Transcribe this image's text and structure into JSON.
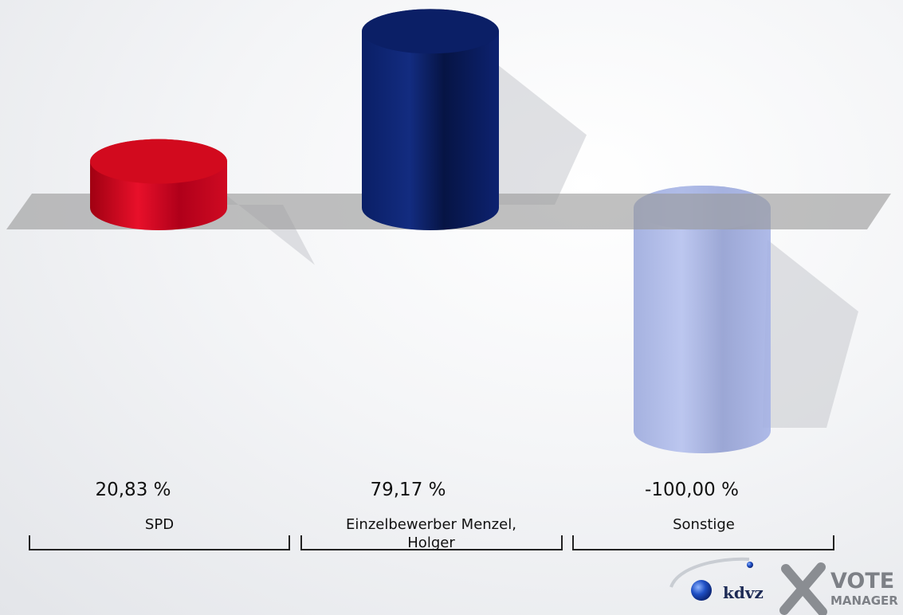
{
  "chart_data": {
    "type": "bar",
    "categories": [
      "SPD",
      "Einzelbewerber Menzel, Holger",
      "Sonstige"
    ],
    "category_lines": [
      [
        "SPD"
      ],
      [
        "Einzelbewerber Menzel,",
        "Holger"
      ],
      [
        "Sonstige"
      ]
    ],
    "values": [
      20.83,
      79.17,
      -100.0
    ],
    "value_labels": [
      "20,83 %",
      "79,17 %",
      "-100,00 %"
    ],
    "colors": [
      "#d20a1e",
      "#0b1f66",
      "#a9b6e6"
    ],
    "ylim": [
      -100,
      100
    ],
    "grid": false
  },
  "logo": {
    "kdvz": "kdvz",
    "vote": "VOTE",
    "manager": "MANAGER"
  }
}
